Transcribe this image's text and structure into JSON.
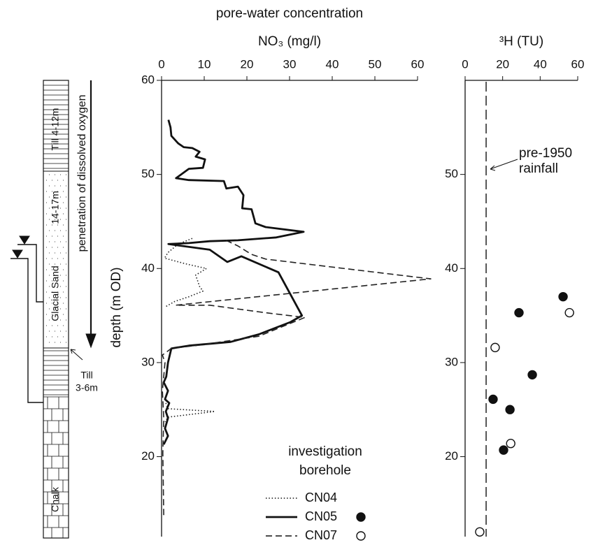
{
  "figure_title": "pore-water concentration",
  "ylabel": "depth (m OD)",
  "chart_data": [
    {
      "type": "line",
      "xlabel": "NO₃ (mg/l)",
      "xlim": [
        0,
        60
      ],
      "xticks": [
        0,
        10,
        20,
        30,
        40,
        50,
        60
      ],
      "ylim": [
        11.5,
        60
      ],
      "yticks": [
        20,
        30,
        40,
        50,
        60
      ],
      "series": [
        {
          "style": "dotted",
          "color": "#222222",
          "x": [
            7.2,
            3.9,
            1.5,
            0.7,
            5.6,
            10.5,
            8.0,
            8.9,
            9.7,
            6.4,
            3.1,
            0.8,
            null,
            1.0,
            1.5,
            12.5,
            1.5,
            0.8
          ],
          "y": [
            43.2,
            42.6,
            41.7,
            41.1,
            40.5,
            40.0,
            39.3,
            38.1,
            37.6,
            37.0,
            36.5,
            35.9,
            null,
            25.7,
            25.1,
            24.8,
            24.2,
            23.7
          ]
        },
        {
          "style": "solid",
          "color": "#111111",
          "x": [
            1.6,
            2.1,
            2.3,
            3.9,
            5.2,
            7.2,
            8.9,
            8.0,
            10.2,
            9.7,
            6.4,
            3.4,
            6.4,
            14.6,
            15.2,
            17.9,
            19.2,
            18.9,
            21.1,
            22.0,
            24.4,
            33.3,
            26.9,
            17.9,
            11.3,
            6.4,
            1.6,
            11.3,
            15.4,
            18.7,
            27.4,
            32.9,
            30.2,
            22.8,
            16.2,
            6.4,
            2.3,
            1.5,
            1.1,
            0.5,
            1.5,
            0.8,
            1.8,
            1.0,
            1.5,
            0.8,
            1.5,
            0.5
          ],
          "y": [
            55.8,
            55.0,
            54.1,
            53.3,
            52.9,
            52.8,
            52.4,
            51.9,
            51.6,
            50.7,
            50.6,
            49.6,
            49.4,
            49.3,
            48.5,
            48.7,
            47.8,
            46.4,
            46.3,
            44.8,
            44.4,
            43.9,
            43.3,
            43.0,
            42.9,
            42.7,
            42.6,
            42.0,
            40.7,
            41.3,
            39.6,
            35.0,
            34.3,
            33.0,
            32.2,
            31.8,
            31.5,
            30.0,
            28.5,
            27.9,
            27.0,
            26.1,
            25.7,
            24.8,
            24.1,
            23.0,
            22.2,
            21.3
          ]
        },
        {
          "style": "dashed",
          "color": "#222222",
          "x": [
            15.1,
            17.9,
            21.1,
            24.4,
            63.1,
            3.3,
            11.3,
            24.4,
            33.6,
            22.8,
            9.7,
            2.3,
            0.2,
            0.8,
            0.2,
            0.5,
            0.3,
            0.5
          ],
          "y": [
            43.0,
            42.4,
            41.5,
            41.0,
            38.9,
            36.1,
            36.1,
            35.3,
            34.8,
            32.8,
            31.9,
            31.5,
            30.8,
            30.0,
            27.0,
            24.1,
            20.4,
            13.7
          ]
        }
      ]
    },
    {
      "type": "scatter",
      "xlabel": "³H (TU)",
      "xlim": [
        0,
        60
      ],
      "xticks": [
        0,
        20,
        40,
        60
      ],
      "ylim": [
        11.5,
        60
      ],
      "yticks": [
        20,
        30,
        40,
        50
      ],
      "reference_x": 11.2,
      "annotation": [
        "pre-1950",
        "rainfall"
      ],
      "series": [
        {
          "marker": "filled",
          "color": "#111111",
          "x": [
            52.2,
            28.7,
            35.8,
            14.9,
            23.9,
            20.5
          ],
          "y": [
            37.0,
            35.3,
            28.7,
            26.1,
            25.0,
            20.7
          ]
        },
        {
          "marker": "open",
          "color": "#111111",
          "x": [
            55.6,
            16.0,
            24.3,
            7.8
          ],
          "y": [
            35.3,
            31.6,
            21.4,
            12.0
          ]
        }
      ]
    }
  ],
  "legend": {
    "title": [
      "investigation",
      "borehole"
    ],
    "entries": [
      {
        "label": "CN04",
        "style": "dotted"
      },
      {
        "label": "CN05",
        "style": "solid",
        "marker": "filled"
      },
      {
        "label": "CN07",
        "style": "dashed",
        "marker": "open"
      }
    ]
  },
  "lithology": {
    "till_upper": "Till 4-12m",
    "sand_thickness": "14-17m",
    "sand": "Glacial Sand",
    "chalk": "Chalk",
    "till_lower": [
      "Till",
      "3-6m"
    ],
    "arrow_label": "penetration of dissolved oxygen"
  }
}
